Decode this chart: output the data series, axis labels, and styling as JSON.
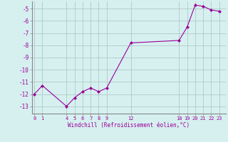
{
  "x": [
    0,
    1,
    4,
    5,
    6,
    7,
    8,
    9,
    12,
    18,
    19,
    20,
    21,
    22,
    23
  ],
  "y": [
    -12.0,
    -11.3,
    -13.0,
    -12.3,
    -11.8,
    -11.5,
    -11.8,
    -11.5,
    -7.8,
    -7.6,
    -6.5,
    -4.7,
    -4.8,
    -5.1,
    -5.2
  ],
  "line_color": "#990099",
  "marker": "D",
  "marker_size": 2.0,
  "bg_color": "#d6f0f0",
  "grid_color": "#b0c8c8",
  "tick_color": "#990099",
  "label_color": "#990099",
  "xlabel": "Windchill (Refroidissement éolien,°C)",
  "yticks": [
    -5,
    -6,
    -7,
    -8,
    -9,
    -10,
    -11,
    -12,
    -13
  ],
  "xticks": [
    0,
    1,
    4,
    5,
    6,
    7,
    8,
    9,
    12,
    18,
    19,
    20,
    21,
    22,
    23
  ],
  "ylim": [
    -13.6,
    -4.4
  ],
  "xlim": [
    -0.3,
    23.8
  ]
}
